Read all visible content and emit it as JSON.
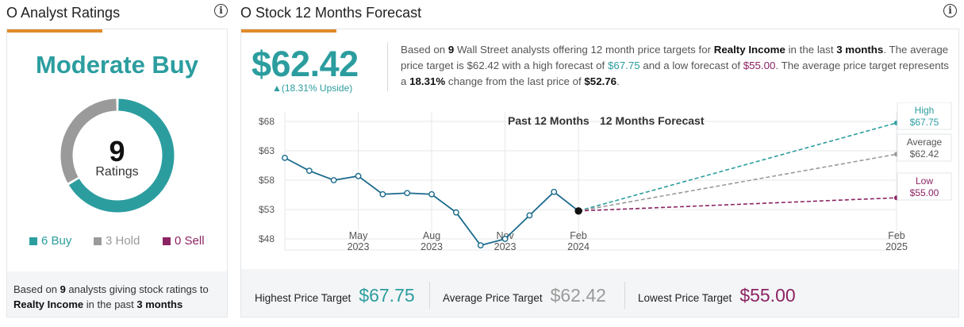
{
  "left": {
    "title": "O Analyst Ratings",
    "consensus": "Moderate Buy",
    "rating_count": "9",
    "rating_label": "Ratings",
    "legend": [
      {
        "label": "6 Buy",
        "count": 6,
        "color": "#2c9d9f"
      },
      {
        "label": "3 Hold",
        "count": 3,
        "color": "#9a9a9a"
      },
      {
        "label": "0 Sell",
        "count": 0,
        "color": "#8c2463"
      }
    ],
    "footer": {
      "pre": "Based on",
      "count": "9",
      "mid": "analysts giving stock ratings to",
      "company": "Realty Income",
      "mid2": "in the past",
      "period": "3 months"
    }
  },
  "right": {
    "title": "O Stock 12 Months Forecast",
    "avg_price": "$62.42",
    "upside": "▲(18.31% Upside)",
    "summary": {
      "s1": "Based on",
      "n": "9",
      "s2": "Wall Street analysts offering 12 month price targets for",
      "company": "Realty Income",
      "s3": "in the last",
      "period": "3 months",
      "s4": ". The average price target is",
      "avg": "$62.42",
      "s5": "with a high forecast of",
      "high": "$67.75",
      "s6": "and a low forecast of",
      "low": "$55.00",
      "s7": ". The average price target represents a",
      "change": "18.31%",
      "s8": "change from the last price of",
      "last": "$52.76",
      "s9": "."
    },
    "bottom": {
      "high_label": "Highest Price Target",
      "high_value": "$67.75",
      "avg_label": "Average Price Target",
      "avg_value": "$62.42",
      "low_label": "Lowest Price Target",
      "low_value": "$55.00"
    }
  },
  "chart_data": {
    "type": "line",
    "legend_past": "Past 12 Months",
    "legend_forecast": "12 Months Forecast",
    "ylim": [
      46,
      70
    ],
    "y_ticks": [
      {
        "label": "$68",
        "value": 68
      },
      {
        "label": "$63",
        "value": 63
      },
      {
        "label": "$58",
        "value": 58
      },
      {
        "label": "$53",
        "value": 53
      },
      {
        "label": "$48",
        "value": 48
      }
    ],
    "x_ticks": [
      {
        "month": "May",
        "year": "2023",
        "t": 3
      },
      {
        "month": "Aug",
        "year": "2023",
        "t": 6
      },
      {
        "month": "Nov",
        "year": "2023",
        "t": 9
      },
      {
        "month": "Feb",
        "year": "2024",
        "t": 12
      },
      {
        "month": "Feb",
        "year": "2025",
        "t": 25
      }
    ],
    "series": [
      {
        "name": "price",
        "t": [
          0,
          1,
          2,
          3,
          4,
          5,
          6,
          7,
          8,
          9,
          10,
          11,
          12
        ],
        "values": [
          61.8,
          59.6,
          58.0,
          58.7,
          55.6,
          55.8,
          55.6,
          52.5,
          46.9,
          48.0,
          52.0,
          56.0,
          52.76
        ]
      }
    ],
    "forecasts": [
      {
        "name": "High",
        "value": 67.75,
        "label": "High",
        "price": "$67.75",
        "color": "#2c9d9f"
      },
      {
        "name": "Average",
        "value": 62.42,
        "label": "Average",
        "price": "$62.42",
        "color": "#9a9a9a"
      },
      {
        "name": "Low",
        "value": 55.0,
        "label": "Low",
        "price": "$55.00",
        "color": "#8c2463"
      }
    ],
    "forecast_t": 25
  },
  "colors": {
    "teal": "#2c9d9f",
    "gray": "#9a9a9a",
    "plum": "#8c2463",
    "orange": "#e08a2a",
    "line": "#1a6a8c"
  }
}
